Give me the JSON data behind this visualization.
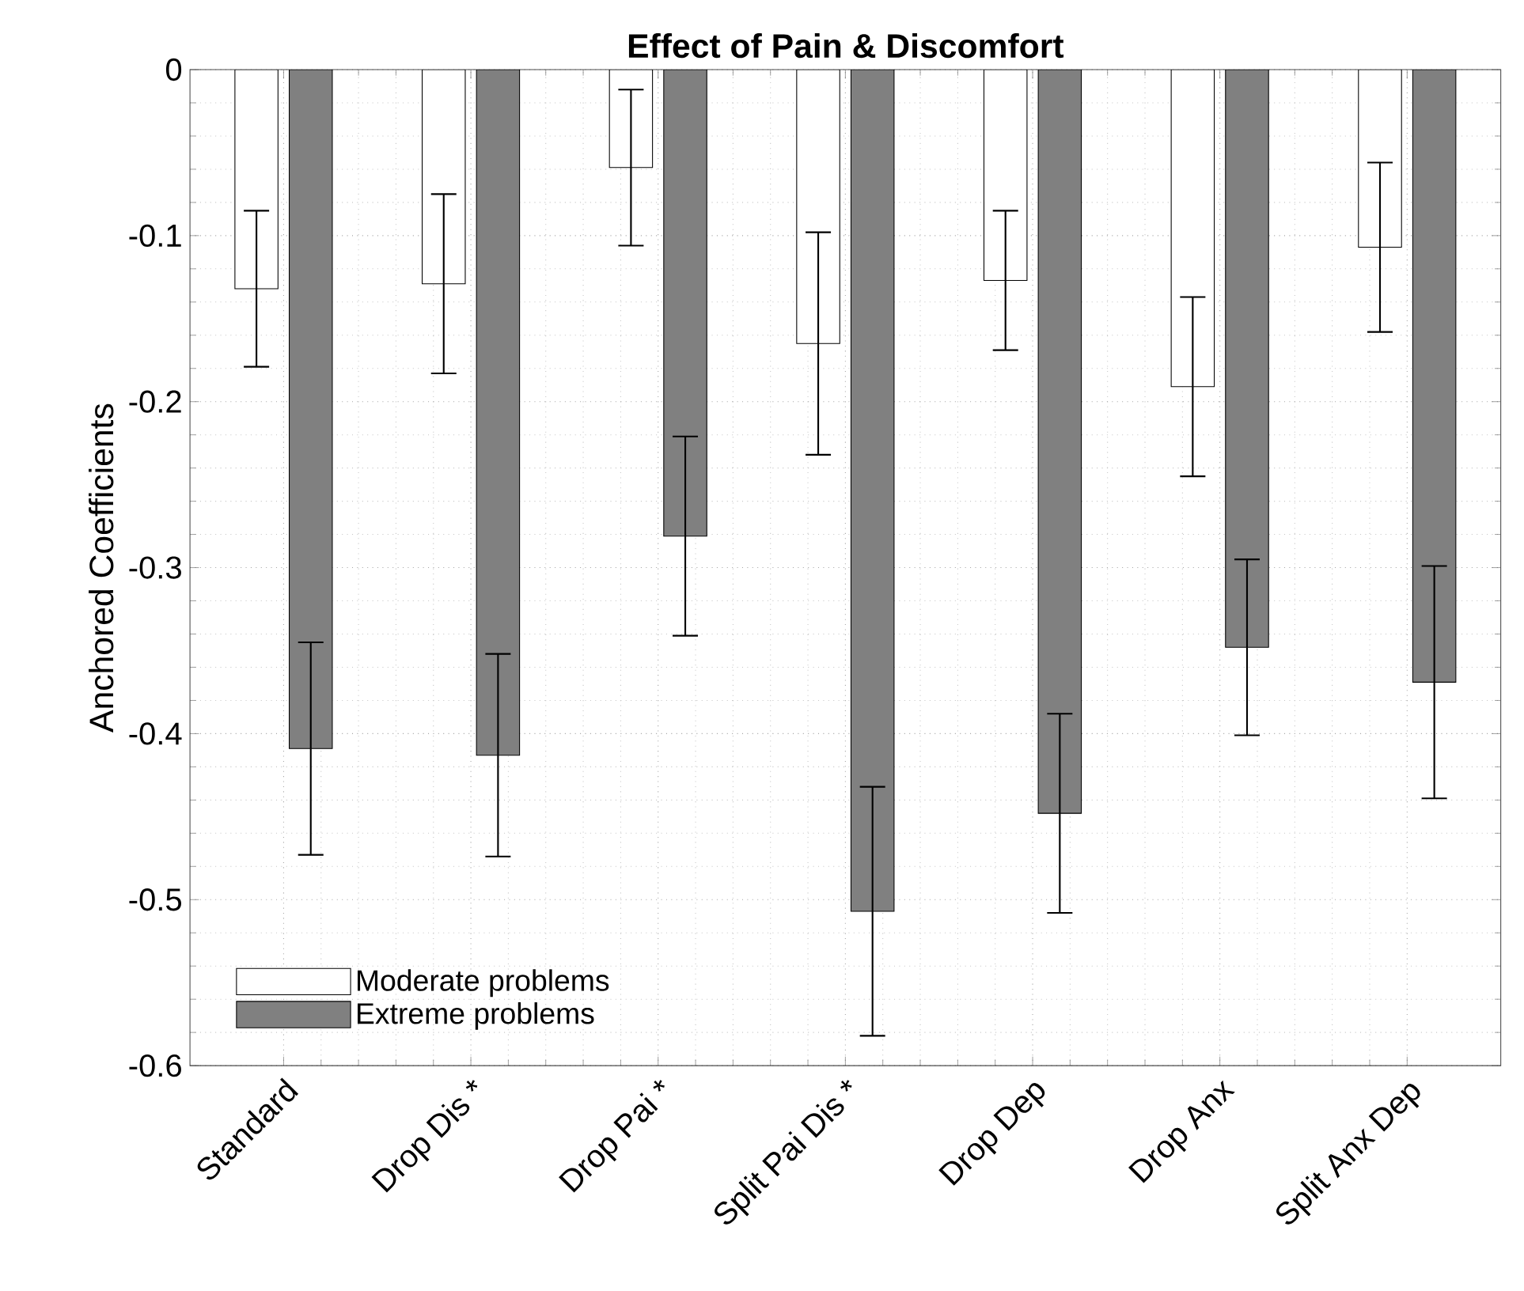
{
  "chart_data": {
    "type": "bar",
    "title": "Effect of Pain & Discomfort",
    "ylabel": "Anchored Coefficients",
    "categories": [
      "Standard",
      "Drop Dis *",
      "Drop Pai *",
      "Split Pai Dis *",
      "Drop Dep",
      "Drop Anx",
      "Split Anx Dep"
    ],
    "series": [
      {
        "name": "Moderate problems",
        "color": "#ffffff",
        "values": [
          -0.132,
          -0.129,
          -0.059,
          -0.165,
          -0.127,
          -0.191,
          -0.107
        ],
        "errors": [
          0.047,
          0.054,
          0.047,
          0.067,
          0.042,
          0.054,
          0.051
        ]
      },
      {
        "name": "Extreme problems",
        "color": "#808080",
        "values": [
          -0.409,
          -0.413,
          -0.281,
          -0.507,
          -0.448,
          -0.348,
          -0.369
        ],
        "errors": [
          0.064,
          0.061,
          0.06,
          0.075,
          0.06,
          0.053,
          0.07
        ]
      }
    ],
    "ylim": [
      -0.6,
      0
    ],
    "yticks": [
      -0.6,
      -0.5,
      -0.4,
      -0.3,
      -0.2,
      -0.1,
      0
    ],
    "grid": true,
    "legend": "bottom left"
  }
}
